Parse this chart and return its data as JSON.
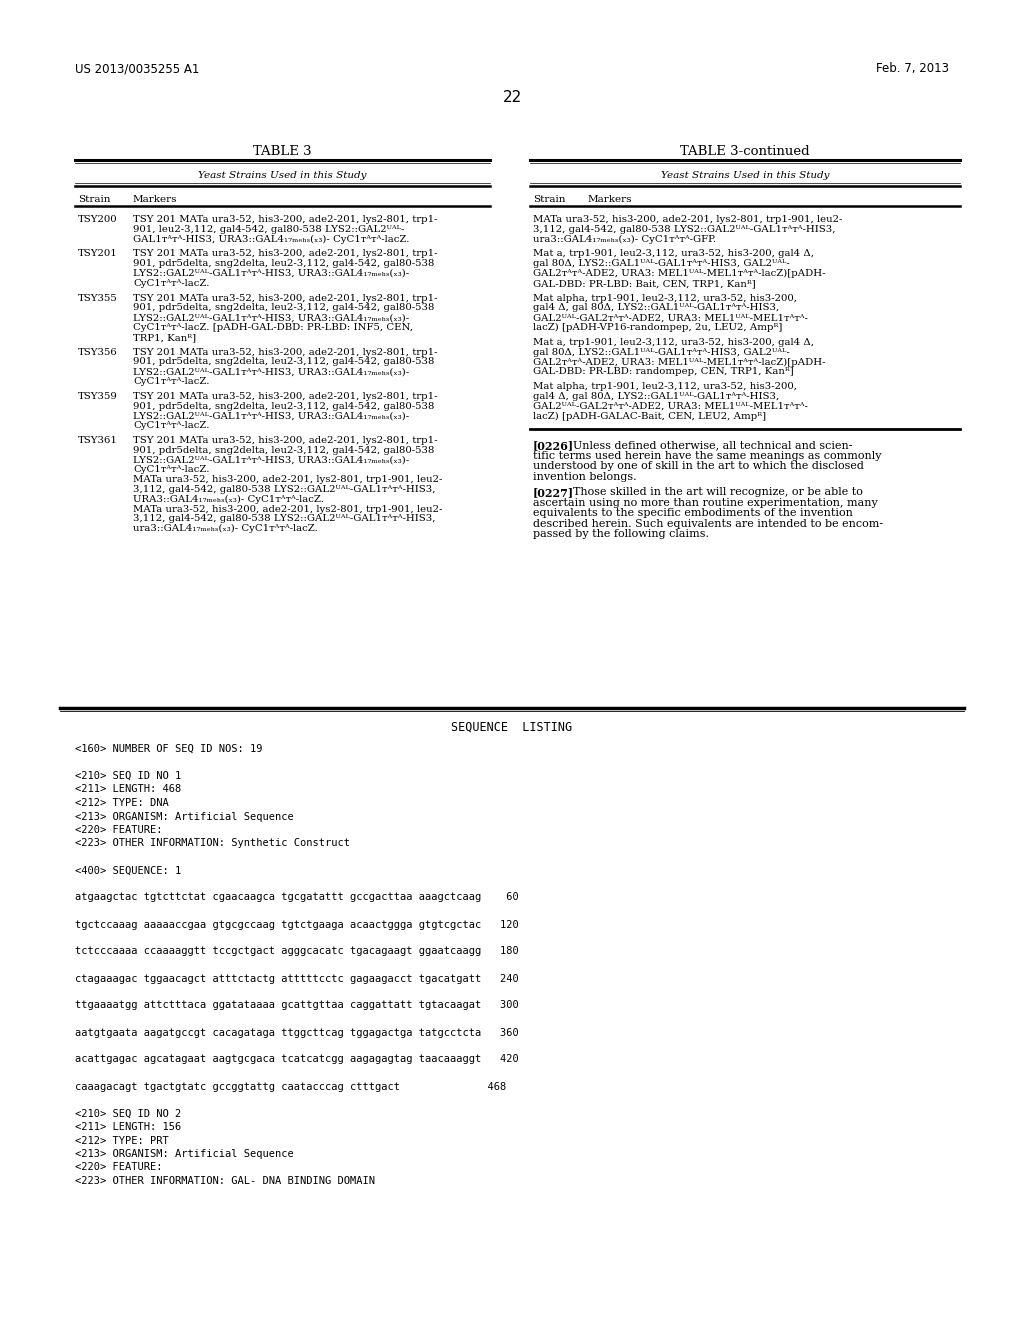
{
  "background_color": "#ffffff",
  "header_left": "US 2013/0035255 A1",
  "header_right": "Feb. 7, 2013",
  "page_number": "22",
  "table3_title": "TABLE 3",
  "table3cont_title": "TABLE 3-continued",
  "table_subtitle": "Yeast Strains Used in this Study",
  "col_strain": "Strain",
  "col_markers": "Markers",
  "seq_listing_title": "SEQUENCE  LISTING",
  "left_rows": [
    [
      "TSY200",
      [
        "TSY 201 MATa ura3-52, his3-200, ade2-201, lys2-801, trp1-",
        "901, leu2-3,112, gal4-542, gal80-538 LYS2::GAL2ᵁᴬᴸ-",
        "GAL1ᴛᴬᴛᴬ-HIS3, URA3::GAL4₁₇ₘₑₕₛ(ₓ₃)- CyC1ᴛᴬᴛᴬ-lacZ."
      ]
    ],
    [
      "TSY201",
      [
        "TSY 201 MATa ura3-52, his3-200, ade2-201, lys2-801, trp1-",
        "901, pdr5delta, sng2delta, leu2-3,112, gal4-542, gal80-538",
        "LYS2::GAL2ᵁᴬᴸ-GAL1ᴛᴬᴛᴬ-HIS3, URA3::GAL4₁₇ₘₑₕₛ(ₓ₃)-",
        "CyC1ᴛᴬᴛᴬ-lacZ."
      ]
    ],
    [
      "TSY355",
      [
        "TSY 201 MATa ura3-52, his3-200, ade2-201, lys2-801, trp1-",
        "901, pdr5delta, sng2delta, leu2-3,112, gal4-542, gal80-538",
        "LYS2::GAL2ᵁᴬᴸ-GAL1ᴛᴬᴛᴬ-HIS3, URA3::GAL4₁₇ₘₑₕₛ(ₓ₃)-",
        "CyC1ᴛᴬᴛᴬ-lacZ. [pADH-GAL-DBD: PR-LBD: INF5, CEN,",
        "TRP1, Kanᴿ]"
      ]
    ],
    [
      "TSY356",
      [
        "TSY 201 MATa ura3-52, his3-200, ade2-201, lys2-801, trp1-",
        "901, pdr5delta, sng2delta, leu2-3,112, gal4-542, gal80-538",
        "LYS2::GAL2ᵁᴬᴸ-GAL1ᴛᴬᴛᴬ-HIS3, URA3::GAL4₁₇ₘₑₕₛ(ₓ₃)-",
        "CyC1ᴛᴬᴛᴬ-lacZ."
      ]
    ],
    [
      "TSY359",
      [
        "TSY 201 MATa ura3-52, his3-200, ade2-201, lys2-801, trp1-",
        "901, pdr5delta, sng2delta, leu2-3,112, gal4-542, gal80-538",
        "LYS2::GAL2ᵁᴬᴸ-GAL1ᴛᴬᴛᴬ-HIS3, URA3::GAL4₁₇ₘₑₕₛ(ₓ₃)-",
        "CyC1ᴛᴬᴛᴬ-lacZ."
      ]
    ],
    [
      "TSY361",
      [
        "TSY 201 MATa ura3-52, his3-200, ade2-201, lys2-801, trp1-",
        "901, pdr5delta, sng2delta, leu2-3,112, gal4-542, gal80-538",
        "LYS2::GAL2ᵁᴬᴸ-GAL1ᴛᴬᴛᴬ-HIS3, URA3::GAL4₁₇ₘₑₕₛ(ₓ₃)-",
        "CyC1ᴛᴬᴛᴬ-lacZ.",
        "MATa ura3-52, his3-200, ade2-201, lys2-801, trp1-901, leu2-",
        "3,112, gal4-542, gal80-538 LYS2::GAL2ᵁᴬᴸ-GAL1ᴛᴬᴛᴬ-HIS3,",
        "URA3::GAL4₁₇ₘₑₕₛ(ₓ₃)- CyC1ᴛᴬᴛᴬ-lacZ.",
        "MATa ura3-52, his3-200, ade2-201, lys2-801, trp1-901, leu2-",
        "3,112, gal4-542, gal80-538 LYS2::GAL2ᵁᴬᴸ-GAL1ᴛᴬᴛᴬ-HIS3,",
        "ura3::GAL4₁₇ₘₑₕₛ(ₓ₃)- CyC1ᴛᴬᴛᴬ-lacZ."
      ]
    ]
  ],
  "right_blocks": [
    [
      "MATa ura3-52, his3-200, ade2-201, lys2-801, trp1-901, leu2-",
      "3,112, gal4-542, gal80-538 LYS2::GAL2ᵁᴬᴸ-GAL1ᴛᴬᴛᴬ-HIS3,",
      "ura3::GAL4₁₇ₘₑₕₛ(ₓ₃)- CyC1ᴛᴬᴛᴬ-GFP."
    ],
    [
      "Mat a, trp1-901, leu2-3,112, ura3-52, his3-200, gal4 Δ,",
      "gal 80Δ, LYS2::GAL1ᵁᴬᴸ-GAL1ᴛᴬᴛᴬ-HIS3, GAL2ᵁᴬᴸ-",
      "GAL2ᴛᴬᴛᴬ-ADE2, URA3: MEL1ᵁᴬᴸ-MEL1ᴛᴬᴛᴬ-lacZ)[pADH-",
      "GAL-DBD: PR-LBD: Bait, CEN, TRP1, Kanᴿ]"
    ],
    [
      "Mat alpha, trp1-901, leu2-3,112, ura3-52, his3-200,",
      "gal4 Δ, gal 80Δ, LYS2::GAL1ᵁᴬᴸ-GAL1ᴛᴬᴛᴬ-HIS3,",
      "GAL2ᵁᴬᴸ-GAL2ᴛᴬᴛᴬ-ADE2, URA3: MEL1ᵁᴬᴸ-MEL1ᴛᴬᴛᴬ-",
      "lacZ) [pADH-VP16-randompep, 2u, LEU2, Ampᴿ]"
    ],
    [
      "Mat a, trp1-901, leu2-3,112, ura3-52, his3-200, gal4 Δ,",
      "gal 80Δ, LYS2::GAL1ᵁᴬᴸ-GAL1ᴛᴬᴛᴬ-HIS3, GAL2ᵁᴬᴸ-",
      "GAL2ᴛᴬᴛᴬ-ADE2, URA3: MEL1ᵁᴬᴸ-MEL1ᴛᴬᴛᴬ-lacZ)[pADH-",
      "GAL-DBD: PR-LBD: randompep, CEN, TRP1, Kanᴿ]"
    ],
    [
      "Mat alpha, trp1-901, leu2-3,112, ura3-52, his3-200,",
      "gal4 Δ, gal 80Δ, LYS2::GAL1ᵁᴬᴸ-GAL1ᴛᴬᴛᴬ-HIS3,",
      "GAL2ᵁᴬᴸ-GAL2ᴛᴬᴛᴬ-ADE2, URA3: MEL1ᵁᴬᴸ-MEL1ᴛᴬᴛᴬ-",
      "lacZ) [pADH-GALAC-Bait, CEN, LEU2, Ampᴿ]"
    ]
  ],
  "para226_lines": [
    "Unless defined otherwise, all technical and scien-",
    "tific terms used herein have the same meanings as commonly",
    "understood by one of skill in the art to which the disclosed",
    "invention belongs."
  ],
  "para227_lines": [
    "Those skilled in the art will recognize, or be able to",
    "ascertain using no more than routine experimentation, many",
    "equivalents to the specific embodiments of the invention",
    "described herein. Such equivalents are intended to be encom-",
    "passed by the following claims."
  ],
  "seq_lines": [
    "<160> NUMBER OF SEQ ID NOS: 19",
    "",
    "<210> SEQ ID NO 1",
    "<211> LENGTH: 468",
    "<212> TYPE: DNA",
    "<213> ORGANISM: Artificial Sequence",
    "<220> FEATURE:",
    "<223> OTHER INFORMATION: Synthetic Construct",
    "",
    "<400> SEQUENCE: 1",
    "",
    "atgaagctac tgtcttctat cgaacaagca tgcgatattt gccgacttaa aaagctcaag    60",
    "",
    "tgctccaaag aaaaaccgaa gtgcgccaag tgtctgaaga acaactggga gtgtcgctac   120",
    "",
    "tctcccaaaa ccaaaaggtt tccgctgact agggcacatc tgacagaagt ggaatcaagg   180",
    "",
    "ctagaaagac tggaacagct atttctactg atttttcctc gagaagacct tgacatgatt   240",
    "",
    "ttgaaaatgg attctttaca ggatataaaa gcattgttaa caggattatt tgtacaagat   300",
    "",
    "aatgtgaata aagatgccgt cacagataga ttggcttcag tggagactga tatgcctcta   360",
    "",
    "acattgagac agcatagaat aagtgcgaca tcatcatcgg aagagagtag taacaaaggt   420",
    "",
    "caaagacagt tgactgtatc gccggtattg caatacccag ctttgact              468",
    "",
    "<210> SEQ ID NO 2",
    "<211> LENGTH: 156",
    "<212> TYPE: PRT",
    "<213> ORGANISM: Artificial Sequence",
    "<220> FEATURE:",
    "<223> OTHER INFORMATION: GAL- DNA BINDING DOMAIN"
  ]
}
